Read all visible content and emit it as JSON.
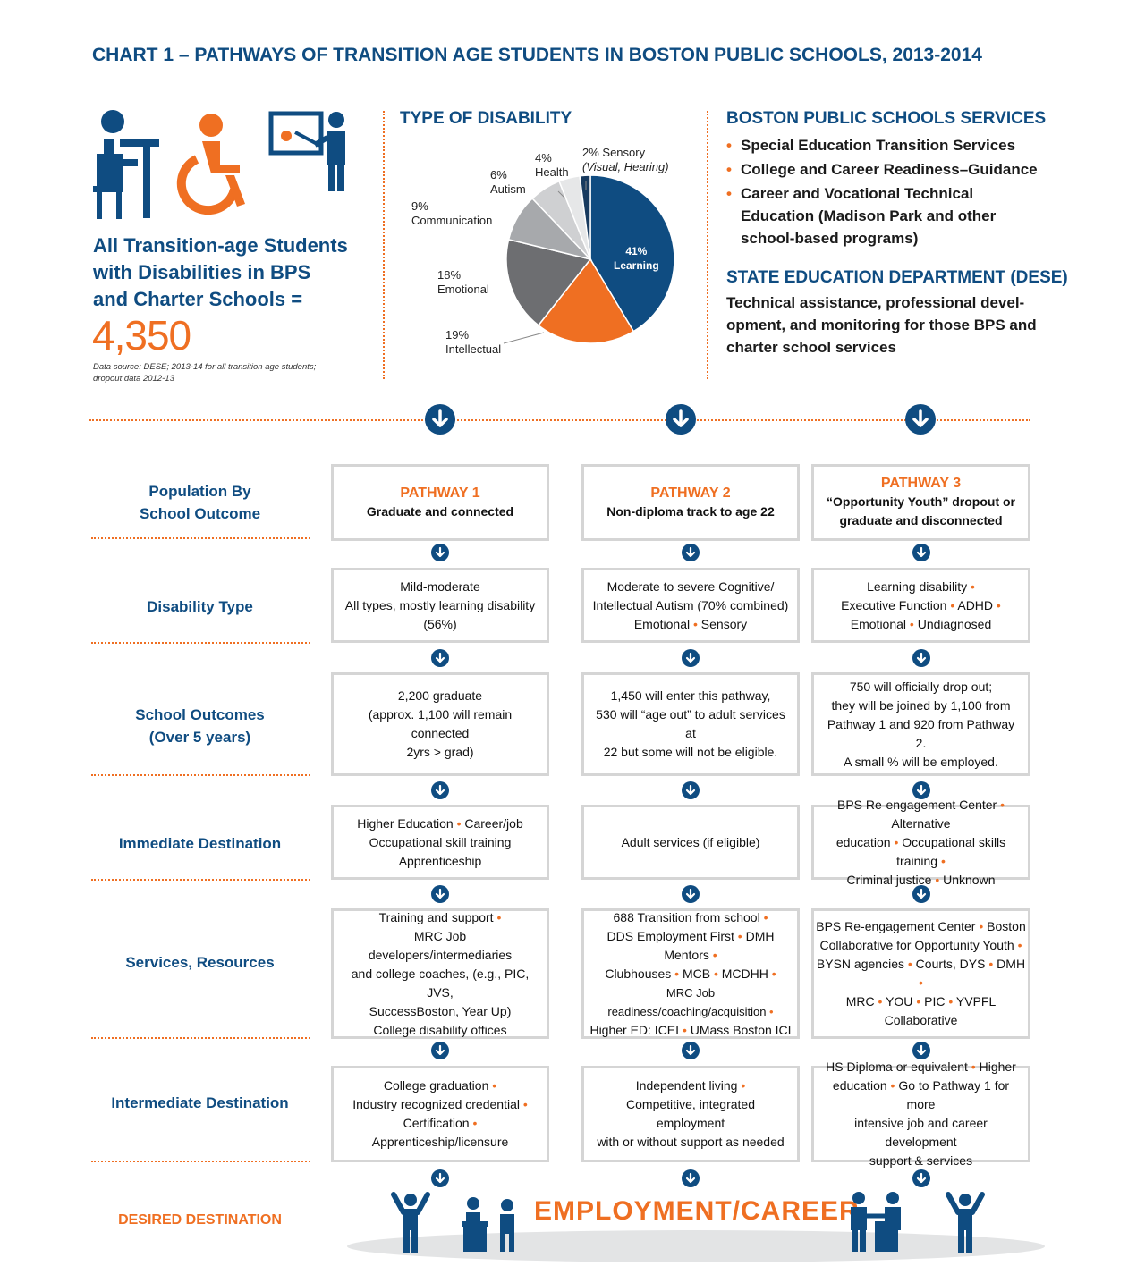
{
  "title": "CHART 1 – PATHWAYS OF TRANSITION AGE STUDENTS IN BOSTON PUBLIC SCHOOLS, 2013-2014",
  "summary": {
    "label_lines": [
      "All Transition-age Students",
      "with Disabilities in BPS",
      "and Charter Schools ="
    ],
    "total": "4,350",
    "source_lines": [
      "Data source: DESE; 2013-14 for all transition age students;",
      "dropout data 2012-13"
    ]
  },
  "chart_data": {
    "type": "pie",
    "title": "TYPE OF DISABILITY",
    "slices": [
      {
        "label": "Learning",
        "pct_label": "41%",
        "value": 41,
        "color": "#0f4c81"
      },
      {
        "label": "Intellectual",
        "pct_label": "19%",
        "value": 19,
        "color": "#ef6f22"
      },
      {
        "label": "Emotional",
        "pct_label": "18%",
        "value": 18,
        "color": "#6d6e71"
      },
      {
        "label": "Communication",
        "pct_label": "9%",
        "value": 9,
        "color": "#a7a9ac"
      },
      {
        "label": "Autism",
        "pct_label": "6%",
        "value": 6,
        "color": "#cfd0d2"
      },
      {
        "label": "Health",
        "pct_label": "4%",
        "value": 4,
        "color": "#e6e7e8"
      },
      {
        "label": "Sensory",
        "pct_label": "2% Sensory",
        "note": "(Visual, Hearing)",
        "value": 2,
        "color": "#183a5e"
      }
    ]
  },
  "services": {
    "bps_heading": "BOSTON PUBLIC SCHOOLS SERVICES",
    "bps_items": [
      [
        "Special Education Transition Services"
      ],
      [
        "College and Career Readiness–Guidance"
      ],
      [
        "Career and Vocational Technical",
        "Education (Madison Park and other",
        "school-based programs)"
      ]
    ],
    "bullet": "•",
    "dese_heading": "STATE EDUCATION DEPARTMENT (DESE)",
    "dese_lines": [
      "Technical assistance, professional devel-",
      "opment, and monitoring for those BPS and",
      "charter school services"
    ]
  },
  "rows": [
    {
      "label_lines": [
        "Population By",
        "School Outcome"
      ]
    },
    {
      "label_lines": [
        "Disability Type"
      ]
    },
    {
      "label_lines": [
        "School Outcomes",
        "(Over 5 years)"
      ]
    },
    {
      "label_lines": [
        "Immediate Destination"
      ]
    },
    {
      "label_lines": [
        "Services, Resources"
      ]
    },
    {
      "label_lines": [
        "Intermediate Destination"
      ]
    }
  ],
  "pathways": [
    {
      "title": "PATHWAY 1",
      "subtitle_lines": [
        "Graduate and connected"
      ],
      "cells": [
        [
          "Mild-moderate",
          "All types, mostly learning disability",
          "(56%)"
        ],
        [
          "2,200 graduate",
          "(approx. 1,100 will remain connected",
          "2yrs > grad)"
        ],
        [
          "Higher Education • Career/job",
          "Occupational skill training",
          "Apprenticeship"
        ],
        [
          "Training and support •",
          "MRC Job developers/intermediaries",
          "and college coaches, (e.g., PIC, JVS,",
          "SuccessBoston, Year Up)",
          "College disability offices"
        ],
        [
          "College graduation •",
          "Industry recognized credential •",
          "Certification • Apprenticeship/licensure"
        ]
      ]
    },
    {
      "title": "PATHWAY 2",
      "subtitle_lines": [
        "Non-diploma track to age 22"
      ],
      "cells": [
        [
          "Moderate to severe Cognitive/",
          "Intellectual Autism (70% combined)",
          "Emotional • Sensory"
        ],
        [
          "1,450 will enter this pathway,",
          "530 will “age out” to adult services at",
          "22 but some will not be eligible."
        ],
        [
          "Adult services (if eligible)"
        ],
        [
          "688 Transition from school •",
          "DDS Employment First • DMH Mentors •",
          "Clubhouses • MCB • MCDHH •",
          "MRC Job readiness/coaching/acquisition •",
          "Higher ED: ICEI • UMass Boston ICI"
        ],
        [
          "Independent living •",
          "Competitive, integrated employment",
          "with or without support as needed"
        ]
      ]
    },
    {
      "title": "PATHWAY 3",
      "subtitle_lines": [
        "“Opportunity Youth” dropout or",
        "graduate and disconnected"
      ],
      "cells": [
        [
          "Learning disability •",
          "Executive Function • ADHD •",
          "Emotional • Undiagnosed"
        ],
        [
          "750 will officially drop out;",
          "they will be joined by 1,100 from",
          "Pathway 1 and 920 from Pathway 2.",
          "A small % will be employed."
        ],
        [
          "BPS Re-engagement Center • Alternative",
          "education • Occupational skills training •",
          "Criminal justice • Unknown"
        ],
        [
          "BPS Re-engagement Center • Boston",
          "Collaborative for Opportunity Youth •",
          "BYSN agencies • Courts, DYS • DMH •",
          "MRC • YOU • PIC • YVPFL Collaborative"
        ],
        [
          "HS Diploma or equivalent • Higher",
          "education • Go to Pathway 1 for more",
          "intensive job and career development",
          "support & services"
        ]
      ]
    }
  ],
  "desired": {
    "label": "DESIRED DESTINATION",
    "value": "EMPLOYMENT/CAREER"
  },
  "colors": {
    "navy": "#0f4c81",
    "orange": "#ef6f22",
    "box_border": "#d5d5d5"
  },
  "icons": [
    "student-desk-icon",
    "wheelchair-icon",
    "teacher-icon",
    "down-arrow-icon",
    "celebrating-person-icon",
    "meeting-icon",
    "handshake-icon"
  ]
}
